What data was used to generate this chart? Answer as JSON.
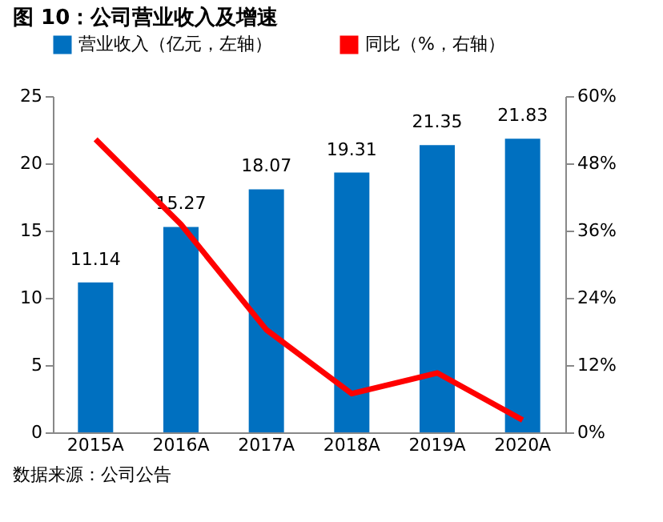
{
  "chart_data": {
    "type": "bar",
    "title": "图 10：公司营业收入及增速",
    "categories": [
      "2015A",
      "2016A",
      "2017A",
      "2018A",
      "2019A",
      "2020A"
    ],
    "series": [
      {
        "name": "营业收入（亿元，左轴）",
        "color": "#0070c0",
        "values": [
          11.14,
          15.27,
          18.07,
          19.31,
          21.35,
          21.83
        ],
        "value_labels": [
          "11.14",
          "15.27",
          "18.07",
          "19.31",
          "21.35",
          "21.83"
        ]
      },
      {
        "name": "同比（%，右轴）",
        "type": "line",
        "axis": "y2",
        "color": "#ff0000",
        "values": [
          52.3,
          37.1,
          18.3,
          6.9,
          10.6,
          2.2
        ]
      }
    ],
    "ylim": [
      0,
      25
    ],
    "yticks": [
      0,
      5,
      10,
      15,
      20,
      25
    ],
    "y2lim": [
      0,
      60
    ],
    "y2ticks": [
      {
        "value": 0,
        "label": "0%"
      },
      {
        "value": 12,
        "label": "12%"
      },
      {
        "value": 24,
        "label": "24%"
      },
      {
        "value": 36,
        "label": "36%"
      },
      {
        "value": 48,
        "label": "48%"
      },
      {
        "value": 60,
        "label": "60%"
      }
    ],
    "legend": "top",
    "grid": false,
    "annotations": [
      "数据来源：公司公告"
    ]
  }
}
